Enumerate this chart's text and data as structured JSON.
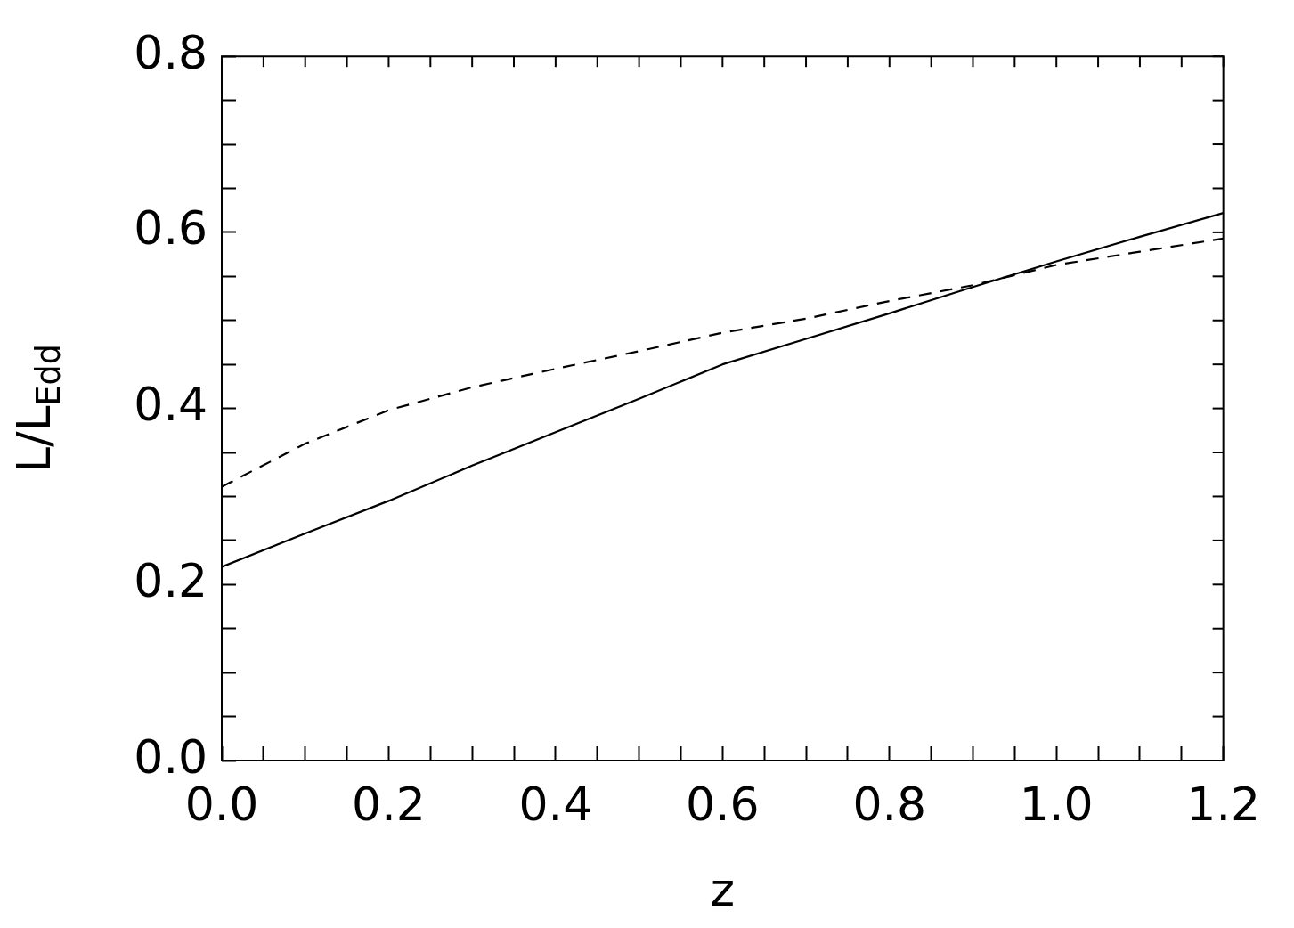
{
  "chart_data": {
    "type": "line",
    "xlabel": "z",
    "ylabel": "L/L$_{Edd}$",
    "xlim": [
      0,
      1.2
    ],
    "ylim": [
      0,
      0.8
    ],
    "xticks": [
      {
        "value": 0,
        "label": "0.0"
      },
      {
        "value": 0.05,
        "label": null
      },
      {
        "value": 0.1,
        "label": null
      },
      {
        "value": 0.15,
        "label": null
      },
      {
        "value": 0.2,
        "label": "0.2"
      },
      {
        "value": 0.25,
        "label": null
      },
      {
        "value": 0.3,
        "label": null
      },
      {
        "value": 0.35,
        "label": null
      },
      {
        "value": 0.4,
        "label": "0.4"
      },
      {
        "value": 0.45,
        "label": null
      },
      {
        "value": 0.5,
        "label": null
      },
      {
        "value": 0.55,
        "label": null
      },
      {
        "value": 0.6,
        "label": "0.6"
      },
      {
        "value": 0.65,
        "label": null
      },
      {
        "value": 0.7,
        "label": null
      },
      {
        "value": 0.75,
        "label": null
      },
      {
        "value": 0.8,
        "label": "0.8"
      },
      {
        "value": 0.85,
        "label": null
      },
      {
        "value": 0.9,
        "label": null
      },
      {
        "value": 0.95,
        "label": null
      },
      {
        "value": 1.0,
        "label": "1.0"
      },
      {
        "value": 1.05,
        "label": null
      },
      {
        "value": 1.1,
        "label": null
      },
      {
        "value": 1.15,
        "label": null
      },
      {
        "value": 1.2,
        "label": "1.2"
      }
    ],
    "yticks": [
      {
        "value": 0,
        "label": "0.0"
      },
      {
        "value": 0.05,
        "label": null
      },
      {
        "value": 0.1,
        "label": null
      },
      {
        "value": 0.15,
        "label": null
      },
      {
        "value": 0.2,
        "label": "0.2"
      },
      {
        "value": 0.25,
        "label": null
      },
      {
        "value": 0.3,
        "label": null
      },
      {
        "value": 0.35,
        "label": null
      },
      {
        "value": 0.4,
        "label": "0.4"
      },
      {
        "value": 0.45,
        "label": null
      },
      {
        "value": 0.5,
        "label": null
      },
      {
        "value": 0.55,
        "label": null
      },
      {
        "value": 0.6,
        "label": "0.6"
      },
      {
        "value": 0.65,
        "label": null
      },
      {
        "value": 0.7,
        "label": null
      },
      {
        "value": 0.75,
        "label": null
      },
      {
        "value": 0.8,
        "label": "0.8"
      }
    ],
    "x": [
      0,
      0.1,
      0.2,
      0.3,
      0.4,
      0.5,
      0.6,
      0.7,
      0.8,
      0.9,
      1.0,
      1.1,
      1.2
    ],
    "grid": false,
    "legend": false,
    "marker": "none",
    "series": [
      {
        "color": "#000000",
        "line_style": "solid",
        "values": [
          0.22,
          0.258,
          0.295,
          0.335,
          0.373,
          0.411,
          0.45,
          0.479,
          0.508,
          0.538,
          0.567,
          0.595,
          0.622
        ]
      },
      {
        "color": "#000000",
        "line_style": "dashed",
        "values": [
          0.311,
          0.36,
          0.398,
          0.424,
          0.445,
          0.465,
          0.486,
          0.502,
          0.522,
          0.54,
          0.563,
          0.578,
          0.593
        ]
      }
    ]
  }
}
